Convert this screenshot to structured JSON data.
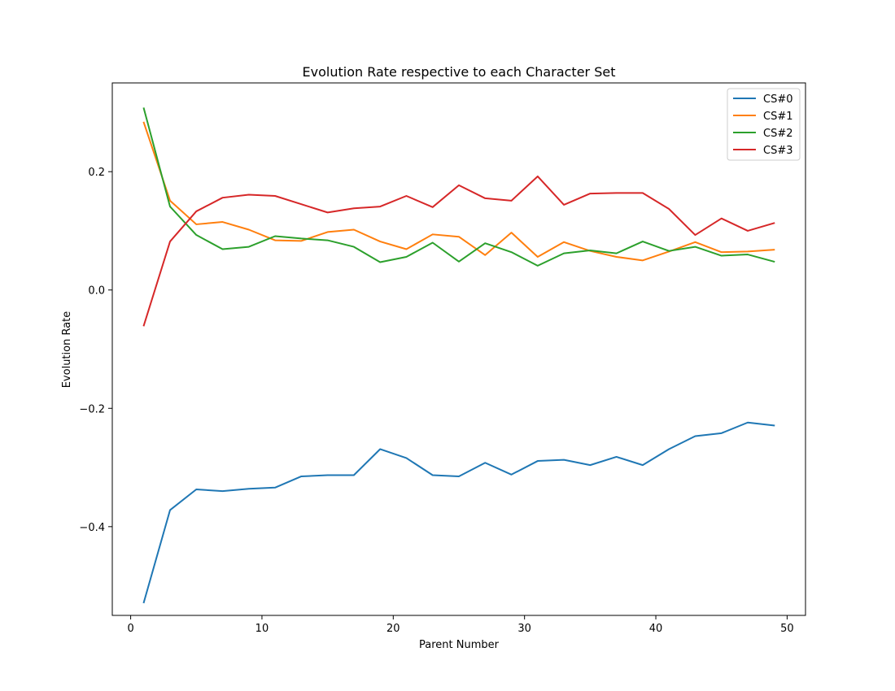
{
  "chart_data": {
    "type": "line",
    "title": "Evolution Rate respective to each Character Set",
    "xlabel": "Parent Number",
    "ylabel": "Evolution Rate",
    "xlim": [
      -1.4,
      51.4
    ],
    "ylim": [
      -0.55,
      0.35
    ],
    "xticks": [
      0,
      10,
      20,
      30,
      40,
      50
    ],
    "xtick_labels": [
      "0",
      "10",
      "20",
      "30",
      "40",
      "50"
    ],
    "yticks": [
      -0.4,
      -0.2,
      0.0,
      0.2
    ],
    "ytick_labels": [
      "−0.4",
      "−0.2",
      "0.0",
      "0.2"
    ],
    "grid": false,
    "legend_position": "top-right",
    "x": [
      1,
      3,
      5,
      7,
      9,
      11,
      13,
      15,
      17,
      19,
      21,
      23,
      25,
      27,
      29,
      31,
      33,
      35,
      37,
      39,
      41,
      43,
      45,
      47,
      49
    ],
    "series": [
      {
        "name": "CS#0",
        "color": "#1f77b4",
        "values": [
          -0.528,
          -0.372,
          -0.337,
          -0.34,
          -0.336,
          -0.334,
          -0.315,
          -0.313,
          -0.313,
          -0.269,
          -0.284,
          -0.313,
          -0.315,
          -0.292,
          -0.312,
          -0.289,
          -0.287,
          -0.296,
          -0.282,
          -0.296,
          -0.269,
          -0.247,
          -0.242,
          -0.224,
          -0.229
        ]
      },
      {
        "name": "CS#1",
        "color": "#ff7f0e",
        "values": [
          0.283,
          0.151,
          0.111,
          0.115,
          0.102,
          0.084,
          0.083,
          0.098,
          0.102,
          0.082,
          0.069,
          0.094,
          0.09,
          0.059,
          0.097,
          0.056,
          0.081,
          0.066,
          0.056,
          0.05,
          0.065,
          0.081,
          0.064,
          0.065,
          0.068
        ]
      },
      {
        "name": "CS#2",
        "color": "#2ca02c",
        "values": [
          0.307,
          0.141,
          0.093,
          0.069,
          0.073,
          0.091,
          0.087,
          0.084,
          0.073,
          0.047,
          0.056,
          0.08,
          0.048,
          0.079,
          0.064,
          0.041,
          0.062,
          0.067,
          0.062,
          0.082,
          0.066,
          0.073,
          0.058,
          0.06,
          0.048
        ]
      },
      {
        "name": "CS#3",
        "color": "#d62728",
        "values": [
          -0.06,
          0.082,
          0.133,
          0.156,
          0.161,
          0.159,
          0.145,
          0.131,
          0.138,
          0.141,
          0.159,
          0.14,
          0.177,
          0.155,
          0.151,
          0.192,
          0.144,
          0.163,
          0.164,
          0.164,
          0.137,
          0.093,
          0.121,
          0.1,
          0.113
        ]
      }
    ]
  }
}
